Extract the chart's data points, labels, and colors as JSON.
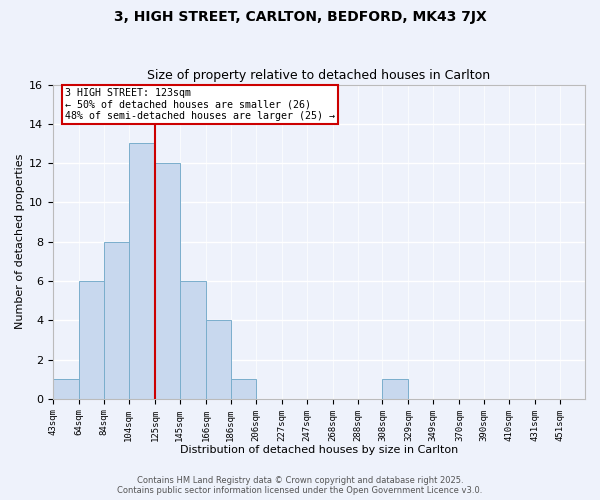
{
  "title": "3, HIGH STREET, CARLTON, BEDFORD, MK43 7JX",
  "subtitle": "Size of property relative to detached houses in Carlton",
  "xlabel": "Distribution of detached houses by size in Carlton",
  "ylabel": "Number of detached properties",
  "bin_labels": [
    "43sqm",
    "64sqm",
    "84sqm",
    "104sqm",
    "125sqm",
    "145sqm",
    "166sqm",
    "186sqm",
    "206sqm",
    "227sqm",
    "247sqm",
    "268sqm",
    "288sqm",
    "308sqm",
    "329sqm",
    "349sqm",
    "370sqm",
    "390sqm",
    "410sqm",
    "431sqm",
    "451sqm"
  ],
  "bin_edges": [
    43,
    64,
    84,
    104,
    125,
    145,
    166,
    186,
    206,
    227,
    247,
    268,
    288,
    308,
    329,
    349,
    370,
    390,
    410,
    431,
    451
  ],
  "bar_counts": [
    1,
    6,
    8,
    13,
    12,
    6,
    4,
    1,
    0,
    0,
    0,
    0,
    0,
    1,
    0,
    0,
    0,
    0,
    0,
    0
  ],
  "bar_color": "#c8d8ee",
  "bar_edge_color": "#7aaecc",
  "property_line_x": 125,
  "annotation_line1": "3 HIGH STREET: 123sqm",
  "annotation_line2": "← 50% of detached houses are smaller (26)",
  "annotation_line3": "48% of semi-detached houses are larger (25) →",
  "annotation_box_color": "white",
  "annotation_box_edge": "#cc0000",
  "vline_color": "#cc0000",
  "ylim": [
    0,
    16
  ],
  "yticks": [
    0,
    2,
    4,
    6,
    8,
    10,
    12,
    14,
    16
  ],
  "background_color": "#eef2fb",
  "grid_color": "white",
  "footer_line1": "Contains HM Land Registry data © Crown copyright and database right 2025.",
  "footer_line2": "Contains public sector information licensed under the Open Government Licence v3.0."
}
